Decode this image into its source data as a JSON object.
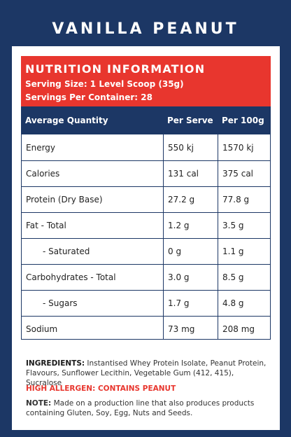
{
  "title": "VANILLA PEANUT",
  "header": {
    "heading": "NUTRITION INFORMATION",
    "serving_size": "Serving Size: 1 Level Scoop (35g)",
    "servings_per_container": "Servings Per Container: 28"
  },
  "table": {
    "columns": [
      "Average Quantity",
      "Per Serve",
      "Per 100g"
    ],
    "rows": [
      {
        "label": "Energy",
        "per_serve": "550 kj",
        "per_100g": "1570 kj"
      },
      {
        "label": "Calories",
        "per_serve": "131 cal",
        "per_100g": "375 cal"
      },
      {
        "label": "Protein (Dry Base)",
        "per_serve": "27.2 g",
        "per_100g": "77.8 g"
      },
      {
        "label": "Fat - Total",
        "per_serve": "1.2 g",
        "per_100g": "3.5 g"
      },
      {
        "label": "- Saturated",
        "per_serve": "0 g",
        "per_100g": "1.1 g"
      },
      {
        "label": "Carbohydrates - Total",
        "per_serve": "3.0 g",
        "per_100g": "8.5 g"
      },
      {
        "label": "- Sugars",
        "per_serve": "1.7 g",
        "per_100g": "4.8 g"
      },
      {
        "label": "Sodium",
        "per_serve": "73 mg",
        "per_100g": "208 mg"
      }
    ]
  },
  "ingredients": {
    "label": "INGREDIENTS:",
    "text": " Instantised Whey Protein Isolate, Peanut Protein, Flavours, Sunflower Lecithin, Vegetable Gum (412, 415), Sucralose"
  },
  "allergen": "HIGH ALLERGEN: CONTAINS PEANUT",
  "note": {
    "label": "NOTE:",
    "text": " Made on a production line that also produces products containing Gluten, Soy, Egg, Nuts and Seeds."
  },
  "colors": {
    "background": "#1c3765",
    "accent_red": "#e8362e",
    "panel": "#ffffff"
  }
}
